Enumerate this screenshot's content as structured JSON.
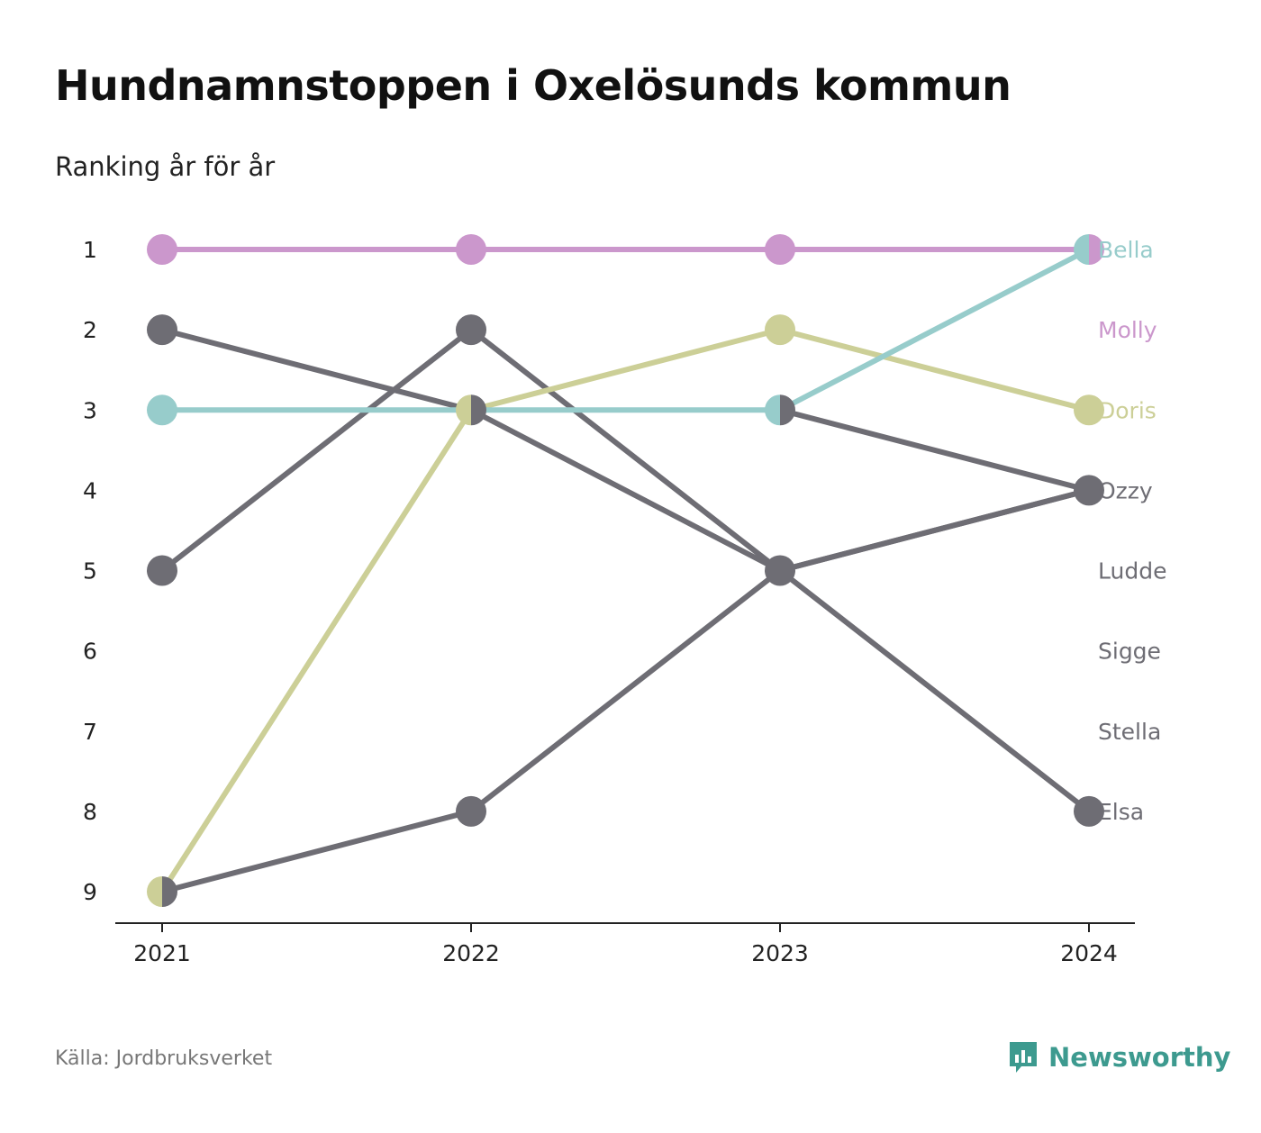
{
  "header": {
    "title": "Hundnamnstoppen i Oxelösunds kommun",
    "subtitle": "Ranking år för år"
  },
  "footer": {
    "source": "Källa: Jordbruksverket",
    "brand": "Newsworthy",
    "brand_icon": "newsworthy-logo-icon",
    "brand_color": "#3d9a8f"
  },
  "chart_data": {
    "type": "line",
    "chart_kind": "bump",
    "x": [
      "2021",
      "2022",
      "2023",
      "2024"
    ],
    "y_ticks": [
      "1",
      "2",
      "3",
      "4",
      "5",
      "6",
      "7",
      "8",
      "9"
    ],
    "ylim": [
      1,
      9
    ],
    "y_inverted": true,
    "grid": false,
    "legend": "end-labels-right",
    "end_labels": [
      "Bella",
      "Molly",
      "Doris",
      "Ozzy",
      "Ludde",
      "Sigge",
      "Stella",
      "Elsa"
    ],
    "series": [
      {
        "name": "Molly",
        "color": "#cb97cc",
        "values": [
          1,
          1,
          1,
          1
        ]
      },
      {
        "name": "Doris",
        "color": "#cccf97",
        "values": [
          9,
          3,
          2,
          3
        ]
      },
      {
        "name": "Bella",
        "color": "#97cccb",
        "values": [
          3,
          3,
          3,
          1
        ]
      },
      {
        "name": "",
        "color": "#6e6d74",
        "values": [
          2,
          3,
          5,
          8
        ]
      },
      {
        "name": "",
        "color": "#6e6d74",
        "values": [
          5,
          2,
          5,
          4
        ]
      },
      {
        "name": "",
        "color": "#6e6d74",
        "values": [
          9,
          8,
          5,
          4
        ]
      },
      {
        "name": "",
        "color": "#6e6d74",
        "values": [
          null,
          null,
          3,
          4
        ]
      }
    ],
    "label_colors": {
      "Bella": "#97cccb",
      "Molly": "#cb97cc",
      "Doris": "#cccf97",
      "Ozzy": "#6e6d74",
      "Ludde": "#6e6d74",
      "Sigge": "#6e6d74",
      "Stella": "#6e6d74",
      "Elsa": "#6e6d74"
    }
  }
}
